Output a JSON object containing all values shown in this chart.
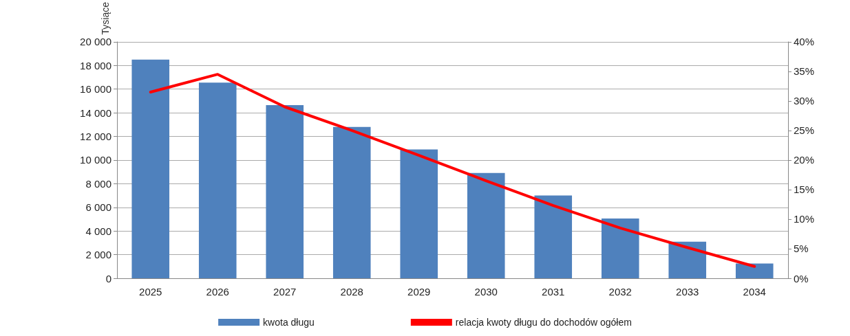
{
  "chart_data": {
    "type": "bar",
    "ylabel": "Tysiące",
    "categories": [
      "2025",
      "2026",
      "2027",
      "2028",
      "2029",
      "2030",
      "2031",
      "2032",
      "2033",
      "2034"
    ],
    "series": [
      {
        "name": "kwota długu",
        "color": "#4f81bd",
        "values": [
          18500,
          16550,
          14650,
          12800,
          10900,
          8900,
          7000,
          5050,
          3100,
          1250
        ]
      },
      {
        "name": "relacja kwoty długu do dochodów ogółem",
        "type": "line",
        "axis": "y2",
        "color": "#ff0000",
        "marker": "none",
        "values": [
          31.5,
          34.5,
          29.0,
          25.0,
          20.8,
          16.5,
          12.3,
          8.5,
          5.2,
          2.0
        ]
      }
    ],
    "ylim": [
      0,
      20000
    ],
    "yticks": [
      {
        "value": 0,
        "label": "0"
      },
      {
        "value": 2000,
        "label": "2 000"
      },
      {
        "value": 4000,
        "label": "4 000"
      },
      {
        "value": 6000,
        "label": "6 000"
      },
      {
        "value": 8000,
        "label": "8 000"
      },
      {
        "value": 10000,
        "label": "10 000"
      },
      {
        "value": 12000,
        "label": "12 000"
      },
      {
        "value": 14000,
        "label": "14 000"
      },
      {
        "value": 16000,
        "label": "16 000"
      },
      {
        "value": 18000,
        "label": "18 000"
      },
      {
        "value": 20000,
        "label": "20 000"
      }
    ],
    "y2lim": [
      0,
      40
    ],
    "y2ticks": [
      {
        "value": 0,
        "label": "0%"
      },
      {
        "value": 5,
        "label": "5%"
      },
      {
        "value": 10,
        "label": "10%"
      },
      {
        "value": 15,
        "label": "15%"
      },
      {
        "value": 20,
        "label": "20%"
      },
      {
        "value": 25,
        "label": "25%"
      },
      {
        "value": 30,
        "label": "30%"
      },
      {
        "value": 35,
        "label": "35%"
      },
      {
        "value": 40,
        "label": "40%"
      }
    ],
    "grid": "y",
    "legend": "bottom"
  }
}
